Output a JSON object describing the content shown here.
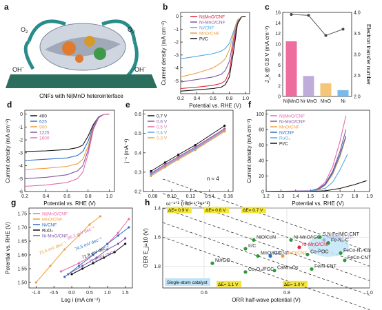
{
  "colors": {
    "red": "#e0223a",
    "pink": "#e66aa8",
    "purple": "#7f56a6",
    "orange": "#ef9d3c",
    "blue": "#2a6dc9",
    "light_blue": "#53a8e2",
    "black": "#111111",
    "green": "#2a9a3a",
    "yellow": "#f4e53a",
    "lavender": "#b7a8da"
  },
  "panels": {
    "a": {
      "letter": "a",
      "caption": "CNFs with Ni|MnO heterointerface",
      "o2_left": "O",
      "o2_right": "O",
      "o2_sub": "2",
      "oh_left": "OH",
      "oh_right": "OH",
      "oh_sup": "−"
    },
    "b": {
      "letter": "b",
      "ylabel": "Current density (mA cm⁻²)",
      "xlabel": "Potential vs. RHE (V)",
      "xticks": [
        "0.2",
        "0.4",
        "0.6",
        "0.8",
        "1.0"
      ],
      "yticks": [
        "0",
        "-1",
        "-2",
        "-3",
        "-4",
        "-5"
      ],
      "legend": [
        "Ni|MnO/CNF",
        "Ni-MnO/CNF",
        "Ni/CNF",
        "MnO/CNF",
        "Pt/C"
      ]
    },
    "c": {
      "letter": "c",
      "ylabel_left": "J_k @ 0.8 V (mA cm⁻²)",
      "ylabel_right": "Electron transfer number",
      "left_ticks": [
        "0",
        "2",
        "4",
        "6",
        "8",
        "10",
        "12",
        "14",
        "16"
      ],
      "right_ticks": [
        "2.0",
        "2.5",
        "3.0",
        "3.5",
        "4.0"
      ],
      "categories": [
        "Ni|MnO",
        "Ni-MnO",
        "MnO",
        "Ni"
      ]
    },
    "d": {
      "letter": "d",
      "ylabel": "Current density (mA cm⁻²)",
      "xlabel": "Potential vs. RHE (V)",
      "xticks": [
        "0.2",
        "0.4",
        "0.6",
        "0.8",
        "1.0"
      ],
      "yticks": [
        "0",
        "-1",
        "-2",
        "-3",
        "-4",
        "-5",
        "-6"
      ],
      "legend": [
        "400",
        "625",
        "900",
        "1225",
        "1600"
      ]
    },
    "e": {
      "letter": "e",
      "ylabel": "j⁻¹ (mA⁻¹)",
      "xlabel": "ω⁻¹ᐟ² (rad⁻¹ᐟ²s¹ᐟ²)",
      "xticks": [
        "0.08",
        "0.10",
        "0.12",
        "0.14",
        "0.16"
      ],
      "yticks": [
        "0.2",
        "0.3",
        "0.4",
        "0.5",
        "0.6"
      ],
      "legend": [
        "0.7 V",
        "0.6 V",
        "0.5 V",
        "0.4 V",
        "0.3 V"
      ],
      "note": "n ≈ 4"
    },
    "f": {
      "letter": "f",
      "ylabel": "Current density (mA cm⁻²)",
      "xlabel": "Potential vs. RHE (V)",
      "xticks": [
        "1.2",
        "1.3",
        "1.4",
        "1.5",
        "1.6",
        "1.7",
        "1.8",
        "1.9"
      ],
      "yticks": [
        "0",
        "20",
        "40",
        "60",
        "80",
        "100"
      ],
      "legend": [
        "Ni|MnO/CNF",
        "Ni-MnO/CNF",
        "MnO/CNF",
        "Ni/CNF",
        "RuO₂",
        "Pt/C"
      ]
    },
    "g": {
      "letter": "g",
      "ylabel": "Potential vs. RHE (V)",
      "xlabel": "Log i (mA cm⁻²)",
      "xticks": [
        "-1.0",
        "-0.5",
        "0.0",
        "0.5",
        "1.0",
        "1.5"
      ],
      "yticks": [
        "1.50",
        "1.55",
        "1.60",
        "1.65",
        "1.70",
        "1.75"
      ],
      "legend": [
        "Ni|MnO/CNF",
        "MnO/CNF",
        "Ni/CNF",
        "RuO₂",
        "Ni-MnO/CNF"
      ],
      "slopes": [
        "75.5 mV dec⁻¹",
        "86.1 mV dec⁻¹",
        "74.5 mV dec⁻¹",
        "71.8 mV dec⁻¹",
        "71.6 mV dec⁻¹"
      ]
    },
    "h": {
      "letter": "h",
      "ylabel": "OER E_j=10 (V)",
      "xlabel": "ORR half-wave potential (V)",
      "xticks": [
        "0.6",
        "0.8",
        "1.0"
      ],
      "yticks": [
        "1.4",
        "1.6",
        "1.8"
      ],
      "de_labels": [
        "ΔE= 0.9 V",
        "ΔE= 0.8 V",
        "ΔE= 0.7 V",
        "ΔE= 1.1 V",
        "ΔE= 1.0 V"
      ],
      "sac_label": "Single-atom catalyst",
      "catalysts": [
        "Ni|MnO/CNF",
        "Ni-MnO/CNF",
        "Ni/CNF",
        "MnO/CNF",
        "NiO/CoN",
        "Ni-MnO/rGO",
        "Ir/C",
        "MnO/rGO",
        "Ni/rGO",
        "Co₃O₄/PGC",
        "CaMn₄Ox",
        "Fe/N-CNT",
        "Co-POC",
        "S,N-Fe/N/C-CNT",
        "Fe-N₄-C",
        "FeCo-N₄-CN",
        "FeCo-CNT"
      ]
    }
  },
  "chart_data": [
    {
      "panel": "b",
      "type": "line",
      "xlabel": "Potential vs. RHE (V)",
      "ylabel": "Current density (mA cm⁻²)",
      "xlim": [
        0.2,
        1.05
      ],
      "ylim": [
        -6,
        0.3
      ],
      "series": [
        {
          "name": "Ni|MnO/CNF",
          "x": [
            0.2,
            0.4,
            0.6,
            0.7,
            0.75,
            0.8,
            0.85,
            0.9,
            0.95,
            1.0
          ],
          "y": [
            -5.6,
            -5.5,
            -5.35,
            -5.2,
            -5.0,
            -4.3,
            -2.2,
            -0.5,
            -0.05,
            0
          ]
        },
        {
          "name": "Ni-MnO/CNF",
          "x": [
            0.2,
            0.4,
            0.6,
            0.7,
            0.75,
            0.8,
            0.85,
            0.9,
            0.95,
            1.0
          ],
          "y": [
            -5.1,
            -4.9,
            -4.7,
            -4.5,
            -4.2,
            -3.5,
            -1.8,
            -0.4,
            -0.05,
            0
          ]
        },
        {
          "name": "Ni/CNF",
          "x": [
            0.2,
            0.4,
            0.6,
            0.7,
            0.75,
            0.8,
            0.85,
            0.9,
            0.95,
            1.0
          ],
          "y": [
            -3.3,
            -3.1,
            -2.9,
            -2.7,
            -2.5,
            -2.1,
            -1.2,
            -0.3,
            -0.05,
            0
          ]
        },
        {
          "name": "MnO/CNF",
          "x": [
            0.2,
            0.4,
            0.6,
            0.7,
            0.75,
            0.8,
            0.85,
            0.9,
            0.95,
            1.0
          ],
          "y": [
            -4.7,
            -4.4,
            -4.0,
            -3.6,
            -3.3,
            -2.6,
            -1.4,
            -0.35,
            -0.05,
            0
          ]
        },
        {
          "name": "Pt/C",
          "x": [
            0.2,
            0.4,
            0.6,
            0.7,
            0.75,
            0.8,
            0.85,
            0.9,
            0.95,
            1.0
          ],
          "y": [
            -5.8,
            -5.7,
            -5.6,
            -5.5,
            -5.3,
            -4.7,
            -2.8,
            -0.6,
            -0.05,
            0
          ]
        }
      ]
    },
    {
      "panel": "c",
      "type": "bar",
      "categories": [
        "Ni|MnO",
        "Ni-MnO",
        "MnO",
        "Ni"
      ],
      "values": [
        10.5,
        3.9,
        2.5,
        1.2
      ],
      "ylim": [
        0,
        16
      ],
      "line": {
        "name": "Electron transfer number",
        "values": [
          3.95,
          3.93,
          3.45,
          3.6
        ],
        "ylim": [
          2,
          4
        ]
      }
    },
    {
      "panel": "d",
      "type": "line",
      "xlabel": "Potential vs. RHE (V)",
      "ylabel": "Current density (mA cm⁻²)",
      "xlim": [
        0.2,
        1.05
      ],
      "ylim": [
        -6,
        0.3
      ],
      "series": [
        {
          "name": "400",
          "x": [
            0.2,
            0.4,
            0.6,
            0.7,
            0.75,
            0.8,
            0.85,
            0.9,
            0.95,
            1.0
          ],
          "y": [
            -2.9,
            -2.85,
            -2.75,
            -2.6,
            -2.4,
            -1.7,
            -0.8,
            -0.2,
            -0.02,
            0
          ]
        },
        {
          "name": "625",
          "x": [
            0.2,
            0.4,
            0.6,
            0.7,
            0.75,
            0.8,
            0.85,
            0.9,
            0.95,
            1.0
          ],
          "y": [
            -3.6,
            -3.5,
            -3.4,
            -3.2,
            -2.9,
            -2.1,
            -0.9,
            -0.2,
            -0.02,
            0
          ]
        },
        {
          "name": "900",
          "x": [
            0.2,
            0.4,
            0.6,
            0.7,
            0.75,
            0.8,
            0.85,
            0.9,
            0.95,
            1.0
          ],
          "y": [
            -4.3,
            -4.2,
            -4.05,
            -3.85,
            -3.5,
            -2.5,
            -1.0,
            -0.25,
            -0.02,
            0
          ]
        },
        {
          "name": "1225",
          "x": [
            0.2,
            0.4,
            0.6,
            0.7,
            0.75,
            0.8,
            0.85,
            0.9,
            0.95,
            1.0
          ],
          "y": [
            -5.0,
            -4.9,
            -4.7,
            -4.4,
            -4.0,
            -2.8,
            -1.1,
            -0.25,
            -0.02,
            0
          ]
        },
        {
          "name": "1600",
          "x": [
            0.2,
            0.4,
            0.6,
            0.7,
            0.75,
            0.8,
            0.85,
            0.9,
            0.95,
            1.0
          ],
          "y": [
            -5.6,
            -5.5,
            -5.3,
            -5.0,
            -4.5,
            -3.1,
            -1.2,
            -0.3,
            -0.02,
            0
          ]
        }
      ]
    },
    {
      "panel": "e",
      "type": "line",
      "xlabel": "ω⁻¹ᐟ² (rad⁻¹ᐟ²s¹ᐟ²)",
      "ylabel": "j⁻¹ (mA⁻¹)",
      "xlim": [
        0.07,
        0.165
      ],
      "ylim": [
        0.2,
        0.62
      ],
      "x": [
        0.078,
        0.093,
        0.107,
        0.125,
        0.156
      ],
      "series": [
        {
          "name": "0.7 V",
          "values": [
            0.305,
            0.35,
            0.39,
            0.44,
            0.54
          ]
        },
        {
          "name": "0.6 V",
          "values": [
            0.295,
            0.34,
            0.38,
            0.43,
            0.525
          ]
        },
        {
          "name": "0.5 V",
          "values": [
            0.29,
            0.335,
            0.375,
            0.425,
            0.52
          ]
        },
        {
          "name": "0.4 V",
          "values": [
            0.285,
            0.33,
            0.37,
            0.42,
            0.515
          ]
        },
        {
          "name": "0.3 V",
          "values": [
            0.28,
            0.325,
            0.365,
            0.415,
            0.51
          ]
        }
      ]
    },
    {
      "panel": "f",
      "type": "line",
      "xlabel": "Potential vs. RHE (V)",
      "ylabel": "Current density (mA cm⁻²)",
      "xlim": [
        1.2,
        1.9
      ],
      "ylim": [
        0,
        105
      ],
      "series": [
        {
          "name": "Ni|MnO/CNF",
          "x": [
            1.2,
            1.5,
            1.55,
            1.6,
            1.65,
            1.7,
            1.74
          ],
          "y": [
            0,
            1,
            4,
            12,
            32,
            65,
            98
          ]
        },
        {
          "name": "Ni-MnO/CNF",
          "x": [
            1.2,
            1.5,
            1.55,
            1.6,
            1.65,
            1.7,
            1.74
          ],
          "y": [
            0,
            0.8,
            3,
            10,
            26,
            52,
            80
          ]
        },
        {
          "name": "MnO/CNF",
          "x": [
            1.2,
            1.5,
            1.55,
            1.6,
            1.65,
            1.7,
            1.74
          ],
          "y": [
            0,
            0.5,
            2,
            8,
            22,
            45,
            70
          ]
        },
        {
          "name": "Ni/CNF",
          "x": [
            1.2,
            1.5,
            1.55,
            1.6,
            1.65,
            1.7,
            1.74
          ],
          "y": [
            0,
            0.6,
            2.5,
            9,
            24,
            48,
            72
          ]
        },
        {
          "name": "RuO₂",
          "x": [
            1.2,
            1.5,
            1.6,
            1.65,
            1.7,
            1.75
          ],
          "y": [
            0,
            0.5,
            4,
            12,
            28,
            48
          ]
        },
        {
          "name": "Pt/C",
          "x": [
            1.2,
            1.5,
            1.6,
            1.7,
            1.8,
            1.88
          ],
          "y": [
            0,
            0.2,
            1,
            4,
            9,
            14
          ]
        }
      ]
    },
    {
      "panel": "g",
      "type": "line",
      "xlabel": "Log i (mA cm⁻²)",
      "ylabel": "Potential vs. RHE (V)",
      "xlim": [
        -1.2,
        1.7
      ],
      "ylim": [
        1.48,
        1.77
      ],
      "series": [
        {
          "name": "Ni|MnO/CNF",
          "x": [
            -0.3,
            0.2,
            0.6,
            1.0,
            1.3,
            1.6
          ],
          "y": [
            1.54,
            1.57,
            1.6,
            1.64,
            1.68,
            1.73
          ]
        },
        {
          "name": "MnO/CNF",
          "x": [
            -1.0,
            -0.6,
            -0.2,
            0.2,
            0.5,
            0.8
          ],
          "y": [
            1.5,
            1.56,
            1.62,
            1.67,
            1.71,
            1.74
          ]
        },
        {
          "name": "Ni/CNF",
          "x": [
            -0.2,
            0.2,
            0.6,
            1.0,
            1.3,
            1.6
          ],
          "y": [
            1.52,
            1.56,
            1.6,
            1.64,
            1.67,
            1.7
          ]
        },
        {
          "name": "RuO₂",
          "x": [
            0.0,
            0.3,
            0.6,
            0.9,
            1.2,
            1.5
          ],
          "y": [
            1.53,
            1.55,
            1.57,
            1.59,
            1.61,
            1.64
          ]
        },
        {
          "name": "Ni-MnO/CNF",
          "x": [
            -0.1,
            0.3,
            0.7,
            1.0,
            1.3,
            1.5
          ],
          "y": [
            1.53,
            1.56,
            1.59,
            1.62,
            1.64,
            1.66
          ]
        }
      ]
    },
    {
      "panel": "h",
      "type": "scatter",
      "xlabel": "ORR half-wave potential (V)",
      "ylabel": "OER E_j=10 (V)",
      "xlim": [
        0.5,
        1.0
      ],
      "ylim": [
        1.4,
        1.95
      ],
      "points": [
        {
          "name": "Ni|MnO/CNF",
          "x": 0.89,
          "y": 1.62
        },
        {
          "name": "Ni-MnO/CNF",
          "x": 0.83,
          "y": 1.67
        },
        {
          "name": "Ni/CNF",
          "x": 0.76,
          "y": 1.73
        },
        {
          "name": "MnO/CNF",
          "x": 0.79,
          "y": 1.73
        },
        {
          "name": "NiO/CoN",
          "x": 0.72,
          "y": 1.62
        },
        {
          "name": "Ni-MnO/rGO",
          "x": 0.81,
          "y": 1.62
        },
        {
          "name": "Ir/C",
          "x": 0.7,
          "y": 1.68
        },
        {
          "name": "MnO/rGO",
          "x": 0.73,
          "y": 1.73
        },
        {
          "name": "Ni/rGO",
          "x": 0.62,
          "y": 1.78
        },
        {
          "name": "Co₃O₄/PGC",
          "x": 0.7,
          "y": 1.84
        },
        {
          "name": "CaMn₄Ox",
          "x": 0.77,
          "y": 1.83
        },
        {
          "name": "Fe/N-CNT",
          "x": 0.86,
          "y": 1.82
        },
        {
          "name": "Co-POC",
          "x": 0.85,
          "y": 1.72
        },
        {
          "name": "S,N-Fe/N/C-CNT",
          "x": 0.88,
          "y": 1.6
        },
        {
          "name": "Fe-N₄-C",
          "x": 0.9,
          "y": 1.64
        },
        {
          "name": "FeCo-N₄-CN",
          "x": 0.93,
          "y": 1.71
        },
        {
          "name": "FeCo-CNT",
          "x": 0.94,
          "y": 1.76
        }
      ]
    }
  ]
}
